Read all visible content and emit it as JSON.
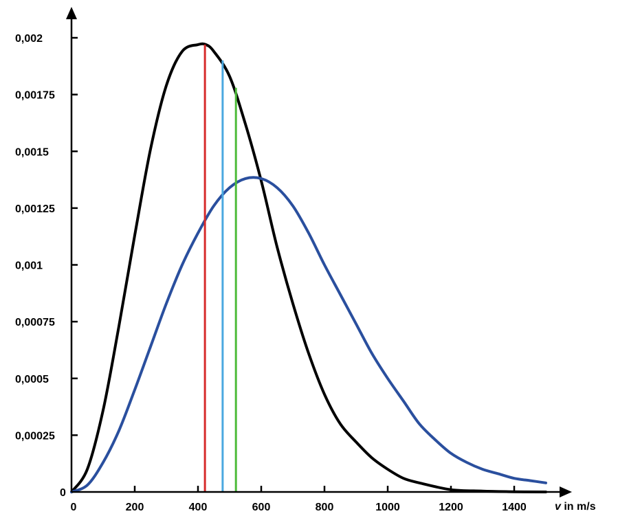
{
  "chart_data": {
    "type": "line",
    "title": "",
    "xlabel_var": "v",
    "xlabel_unit": " in m/s",
    "ylabel": "",
    "xlim": [
      0,
      1500
    ],
    "ylim": [
      0,
      0.002
    ],
    "x_ticks": [
      {
        "value": 0,
        "label": "0"
      },
      {
        "value": 200,
        "label": "200"
      },
      {
        "value": 400,
        "label": "400"
      },
      {
        "value": 600,
        "label": "600"
      },
      {
        "value": 800,
        "label": "800"
      },
      {
        "value": 1000,
        "label": "1000"
      },
      {
        "value": 1200,
        "label": "1200"
      },
      {
        "value": 1400,
        "label": "1400"
      }
    ],
    "y_ticks": [
      {
        "value": 0,
        "label": "0"
      },
      {
        "value": 0.00025,
        "label": "0,00025"
      },
      {
        "value": 0.0005,
        "label": "0,0005"
      },
      {
        "value": 0.00075,
        "label": "0,00075"
      },
      {
        "value": 0.001,
        "label": "0,001"
      },
      {
        "value": 0.00125,
        "label": "0,00125"
      },
      {
        "value": 0.0015,
        "label": "0,0015"
      },
      {
        "value": 0.00175,
        "label": "0,00175"
      },
      {
        "value": 0.002,
        "label": "0,002"
      }
    ],
    "grid": false,
    "legend": "none",
    "series": [
      {
        "color": "#000000",
        "x": [
          0,
          50,
          100,
          150,
          200,
          250,
          300,
          350,
          400,
          425,
          450,
          500,
          550,
          600,
          650,
          700,
          750,
          800,
          850,
          900,
          950,
          1000,
          1050,
          1100,
          1200,
          1300,
          1400,
          1500
        ],
        "y": [
          0,
          0.0001,
          0.00036,
          0.00073,
          0.00113,
          0.00151,
          0.00179,
          0.00194,
          0.00197,
          0.00197,
          0.00194,
          0.00183,
          0.00162,
          0.00137,
          0.00108,
          0.00083,
          0.00061,
          0.00043,
          0.0003,
          0.00022,
          0.00015,
          0.0001,
          6e-05,
          4e-05,
          1e-05,
          4e-06,
          1e-06,
          0
        ]
      },
      {
        "color": "#2a4f9e",
        "x": [
          0,
          50,
          100,
          150,
          200,
          250,
          300,
          350,
          400,
          450,
          500,
          550,
          600,
          650,
          700,
          750,
          800,
          850,
          900,
          950,
          1000,
          1050,
          1100,
          1150,
          1200,
          1250,
          1300,
          1350,
          1400,
          1450,
          1500
        ],
        "y": [
          0,
          3e-05,
          0.00013,
          0.00027,
          0.00045,
          0.00064,
          0.00083,
          0.001,
          0.00114,
          0.00126,
          0.00134,
          0.00138,
          0.00138,
          0.00134,
          0.00126,
          0.00114,
          0.001,
          0.00087,
          0.00074,
          0.00061,
          0.0005,
          0.0004,
          0.0003,
          0.00023,
          0.00017,
          0.00013,
          0.0001,
          8e-05,
          6e-05,
          5e-05,
          4e-05
        ]
      }
    ],
    "vertical_lines": [
      {
        "x": 422,
        "y": 0.00197,
        "color": "#d62b2b"
      },
      {
        "x": 478,
        "y": 0.0019,
        "color": "#4aa8e0"
      },
      {
        "x": 520,
        "y": 0.00178,
        "color": "#4dbb3a"
      }
    ]
  }
}
